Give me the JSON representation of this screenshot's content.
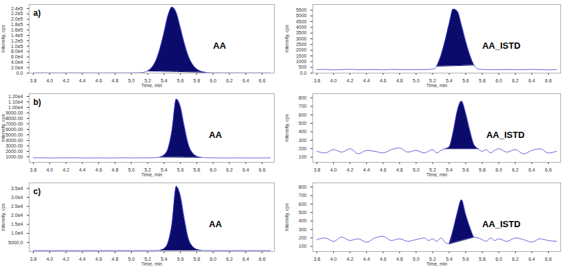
{
  "chart_data": [
    {
      "type": "line",
      "panel": "a)",
      "x_label": "Time, min",
      "y_label": "Intensity, cps",
      "x": [
        3.8,
        3.9,
        4.0,
        4.1,
        4.2,
        4.3,
        4.4,
        4.5,
        4.6,
        4.7,
        4.8,
        4.9,
        5.0,
        5.1,
        5.15,
        5.2,
        5.25,
        5.3,
        5.35,
        5.4,
        5.45,
        5.5,
        5.55,
        5.6,
        5.65,
        5.7,
        5.75,
        5.8,
        5.85,
        5.9,
        5.95,
        6.0,
        6.1,
        6.2,
        6.3,
        6.4,
        6.5,
        6.6,
        6.7
      ],
      "series": [
        {
          "name": "AA",
          "color": "#3a3ad6",
          "values": [
            800,
            900,
            800,
            700,
            800,
            900,
            800,
            800,
            700,
            800,
            900,
            800,
            900,
            1200,
            3000,
            8000,
            20000,
            45000,
            90000,
            150000,
            215000,
            245000,
            225000,
            170000,
            110000,
            62000,
            32000,
            15000,
            7000,
            3000,
            1500,
            1000,
            900,
            800,
            800,
            700,
            800,
            800,
            700
          ]
        }
      ],
      "integrated": [
        5.2,
        5.9
      ],
      "xlim": [
        3.75,
        6.75
      ],
      "xticks": [
        3.8,
        {
          "value": 4,
          "label": "4.0"
        },
        4.2,
        4.4,
        4.6,
        4.8,
        {
          "value": 5,
          "label": "5.0"
        },
        5.2,
        5.4,
        5.6,
        5.8,
        {
          "value": 6,
          "label": "6.0"
        },
        6.2,
        6.4,
        6.6
      ],
      "ylim": [
        0,
        255000
      ],
      "yticks": [
        {
          "value": 0,
          "label": "0.0"
        },
        {
          "value": 20000,
          "label": "2.0e4"
        },
        {
          "value": 40000,
          "label": "4.0e4"
        },
        {
          "value": 60000,
          "label": "6.0e4"
        },
        {
          "value": 80000,
          "label": "8.0e4"
        },
        {
          "value": 100000,
          "label": "1.0e5"
        },
        {
          "value": 120000,
          "label": "1.2e5"
        },
        {
          "value": 140000,
          "label": "1.4e5"
        },
        {
          "value": 160000,
          "label": "1.6e5"
        },
        {
          "value": 180000,
          "label": "1.8e5"
        },
        {
          "value": 200000,
          "label": "2.0e5"
        },
        {
          "value": 220000,
          "label": "2.2e5"
        },
        {
          "value": 240000,
          "label": "2.4e5"
        }
      ]
    },
    {
      "type": "line",
      "x_label": "Time, min",
      "y_label": "Intensity, cps",
      "x": [
        3.8,
        3.9,
        4.0,
        4.1,
        4.2,
        4.3,
        4.4,
        4.5,
        4.6,
        4.7,
        4.8,
        4.9,
        5.0,
        5.1,
        5.15,
        5.2,
        5.25,
        5.3,
        5.35,
        5.4,
        5.45,
        5.5,
        5.55,
        5.6,
        5.65,
        5.7,
        5.75,
        5.8,
        5.85,
        5.9,
        5.95,
        6.0,
        6.1,
        6.2,
        6.3,
        6.4,
        6.5,
        6.6,
        6.7
      ],
      "series": [
        {
          "name": "AA_ISTD",
          "color": "#3a3ad6",
          "values": [
            300,
            320,
            280,
            310,
            330,
            290,
            300,
            310,
            280,
            320,
            300,
            290,
            310,
            300,
            320,
            340,
            600,
            1500,
            2800,
            4300,
            5600,
            5400,
            4200,
            2800,
            1600,
            700,
            350,
            320,
            300,
            310,
            290,
            300,
            310,
            290,
            300,
            320,
            300,
            280,
            310
          ]
        }
      ],
      "integrated": [
        5.25,
        5.7
      ],
      "xlim": [
        3.75,
        6.75
      ],
      "xticks": [
        3.8,
        {
          "value": 4,
          "label": "4.0"
        },
        4.2,
        4.4,
        4.6,
        4.8,
        {
          "value": 5,
          "label": "5.0"
        },
        5.2,
        5.4,
        5.6,
        5.8,
        {
          "value": 6,
          "label": "6.0"
        },
        6.2,
        6.4,
        6.6
      ],
      "ylim": [
        0,
        6000
      ],
      "yticks": [
        {
          "value": 0,
          "label": "0.0"
        },
        500,
        1000,
        1500,
        2000,
        2500,
        3000,
        3500,
        4000,
        4500,
        5000,
        5500
      ]
    },
    {
      "type": "line",
      "panel": "b)",
      "x_label": "Time, min",
      "y_label": "Intensity, cps",
      "x": [
        3.8,
        3.9,
        4.0,
        4.1,
        4.2,
        4.3,
        4.4,
        4.5,
        4.6,
        4.7,
        4.8,
        4.9,
        5.0,
        5.1,
        5.15,
        5.2,
        5.25,
        5.3,
        5.35,
        5.4,
        5.45,
        5.5,
        5.55,
        5.6,
        5.65,
        5.7,
        5.75,
        5.8,
        5.85,
        5.9,
        5.95,
        6.0,
        6.1,
        6.2,
        6.3,
        6.4,
        6.5,
        6.6,
        6.7
      ],
      "series": [
        {
          "name": "AA",
          "color": "#3a3ad6",
          "values": [
            800,
            820,
            790,
            810,
            800,
            830,
            790,
            800,
            810,
            790,
            800,
            820,
            800,
            810,
            800,
            810,
            820,
            850,
            950,
            1300,
            2500,
            6000,
            11500,
            10200,
            6500,
            3200,
            1700,
            1100,
            900,
            850,
            820,
            810,
            800,
            790,
            810,
            800,
            790,
            800,
            810
          ]
        }
      ],
      "integrated": [
        5.35,
        5.85
      ],
      "xlim": [
        3.75,
        6.75
      ],
      "xticks": [
        3.8,
        {
          "value": 4,
          "label": "4.0"
        },
        4.2,
        4.4,
        4.6,
        4.8,
        {
          "value": 5,
          "label": "5.0"
        },
        5.2,
        5.4,
        5.6,
        5.8,
        {
          "value": 6,
          "label": "6.0"
        },
        6.2,
        6.4,
        6.6
      ],
      "ylim": [
        0,
        12500
      ],
      "yticks": [
        {
          "value": 1000,
          "label": "1000.00"
        },
        {
          "value": 2000,
          "label": "2000.00"
        },
        {
          "value": 3000,
          "label": "3000.00"
        },
        {
          "value": 4000,
          "label": "4000.00"
        },
        {
          "value": 5000,
          "label": "5000.00"
        },
        {
          "value": 6000,
          "label": "6000.00"
        },
        {
          "value": 7000,
          "label": "7000.00"
        },
        {
          "value": 8000,
          "label": "8000.00"
        },
        {
          "value": 9000,
          "label": "9000.00"
        },
        {
          "value": 10000,
          "label": "1.00e4"
        },
        {
          "value": 11000,
          "label": "1.10e4"
        },
        {
          "value": 12000,
          "label": "1.20e4"
        }
      ]
    },
    {
      "type": "line",
      "x_label": "Time, min",
      "y_label": "Intensity, cps",
      "x": [
        3.8,
        3.9,
        4.0,
        4.1,
        4.2,
        4.3,
        4.4,
        4.5,
        4.6,
        4.7,
        4.8,
        4.9,
        5.0,
        5.1,
        5.15,
        5.2,
        5.25,
        5.3,
        5.35,
        5.4,
        5.45,
        5.5,
        5.55,
        5.6,
        5.65,
        5.7,
        5.75,
        5.8,
        5.85,
        5.9,
        5.95,
        6.0,
        6.1,
        6.2,
        6.3,
        6.4,
        6.5,
        6.6,
        6.7
      ],
      "series": [
        {
          "name": "AA_ISTD",
          "color": "#3a3ad6",
          "values": [
            170,
            150,
            190,
            160,
            200,
            140,
            180,
            170,
            150,
            190,
            210,
            160,
            180,
            150,
            170,
            190,
            150,
            180,
            200,
            220,
            400,
            650,
            760,
            620,
            420,
            250,
            200,
            170,
            190,
            150,
            180,
            200,
            160,
            190,
            140,
            180,
            200,
            150,
            170
          ]
        }
      ],
      "integrated": [
        5.35,
        5.75
      ],
      "xlim": [
        3.75,
        6.75
      ],
      "xticks": [
        3.8,
        {
          "value": 4,
          "label": "4.0"
        },
        4.2,
        4.4,
        4.6,
        4.8,
        {
          "value": 5,
          "label": "5.0"
        },
        5.2,
        5.4,
        5.6,
        5.8,
        {
          "value": 6,
          "label": "6.0"
        },
        6.2,
        6.4,
        6.6
      ],
      "ylim": [
        40,
        850
      ],
      "yticks": [
        100,
        200,
        300,
        400,
        500,
        600,
        700,
        800
      ]
    },
    {
      "type": "line",
      "panel": "c)",
      "x_label": "Time, min",
      "y_label": "Intensity, cps",
      "x": [
        3.8,
        3.9,
        4.0,
        4.1,
        4.2,
        4.3,
        4.4,
        4.5,
        4.6,
        4.7,
        4.8,
        4.9,
        5.0,
        5.1,
        5.15,
        5.2,
        5.25,
        5.3,
        5.35,
        5.4,
        5.45,
        5.5,
        5.55,
        5.6,
        5.65,
        5.7,
        5.75,
        5.8,
        5.85,
        5.9,
        5.95,
        6.0,
        6.1,
        6.2,
        6.3,
        6.4,
        6.5,
        6.6,
        6.7
      ],
      "series": [
        {
          "name": "AA",
          "color": "#3a3ad6",
          "values": [
            500,
            510,
            490,
            500,
            520,
            480,
            500,
            510,
            490,
            500,
            510,
            500,
            490,
            500,
            500,
            510,
            520,
            560,
            700,
            1500,
            5000,
            16000,
            36000,
            31000,
            18000,
            7000,
            2800,
            1200,
            700,
            560,
            520,
            500,
            500,
            490,
            510,
            500,
            490,
            500,
            510
          ]
        }
      ],
      "integrated": [
        5.35,
        5.85
      ],
      "xlim": [
        3.75,
        6.75
      ],
      "xticks": [
        3.8,
        {
          "value": 4,
          "label": "4.0"
        },
        4.2,
        4.4,
        4.6,
        4.8,
        {
          "value": 5,
          "label": "5.0"
        },
        5.2,
        5.4,
        5.6,
        5.8,
        {
          "value": 6,
          "label": "6.0"
        },
        6.2,
        6.4,
        6.6
      ],
      "ylim": [
        0,
        38000
      ],
      "yticks": [
        {
          "value": 5000,
          "label": "5000.0"
        },
        {
          "value": 10000,
          "label": "1.0e4"
        },
        {
          "value": 15000,
          "label": "1.5e4"
        },
        {
          "value": 20000,
          "label": "2.0e4"
        },
        {
          "value": 25000,
          "label": "2.5e4"
        },
        {
          "value": 30000,
          "label": "3.0e4"
        },
        {
          "value": 35000,
          "label": "3.5e4"
        }
      ]
    },
    {
      "type": "line",
      "x_label": "Time, min",
      "y_label": "Intensity, cps",
      "x": [
        3.8,
        3.9,
        4.0,
        4.1,
        4.2,
        4.3,
        4.4,
        4.5,
        4.6,
        4.7,
        4.8,
        4.9,
        5.0,
        5.1,
        5.15,
        5.2,
        5.25,
        5.3,
        5.35,
        5.4,
        5.45,
        5.5,
        5.55,
        5.6,
        5.65,
        5.7,
        5.75,
        5.8,
        5.85,
        5.9,
        5.95,
        6.0,
        6.1,
        6.2,
        6.3,
        6.4,
        6.5,
        6.6,
        6.7
      ],
      "series": [
        {
          "name": "AA_ISTD",
          "color": "#3a3ad6",
          "values": [
            180,
            200,
            160,
            210,
            170,
            190,
            150,
            200,
            220,
            170,
            190,
            160,
            180,
            200,
            170,
            190,
            160,
            200,
            150,
            130,
            300,
            500,
            650,
            480,
            330,
            210,
            200,
            180,
            160,
            200,
            170,
            190,
            160,
            200,
            180,
            150,
            190,
            170,
            160
          ]
        }
      ],
      "integrated": [
        5.4,
        5.7
      ],
      "xlim": [
        3.75,
        6.75
      ],
      "xticks": [
        3.8,
        {
          "value": 4,
          "label": "4.0"
        },
        4.2,
        4.4,
        4.6,
        4.8,
        {
          "value": 5,
          "label": "5.0"
        },
        5.2,
        5.4,
        5.6,
        5.8,
        {
          "value": 6,
          "label": "6.0"
        },
        6.2,
        6.4,
        6.6
      ],
      "ylim": [
        40,
        850
      ],
      "yticks": [
        100,
        200,
        300,
        400,
        500,
        600,
        700,
        800
      ]
    }
  ]
}
